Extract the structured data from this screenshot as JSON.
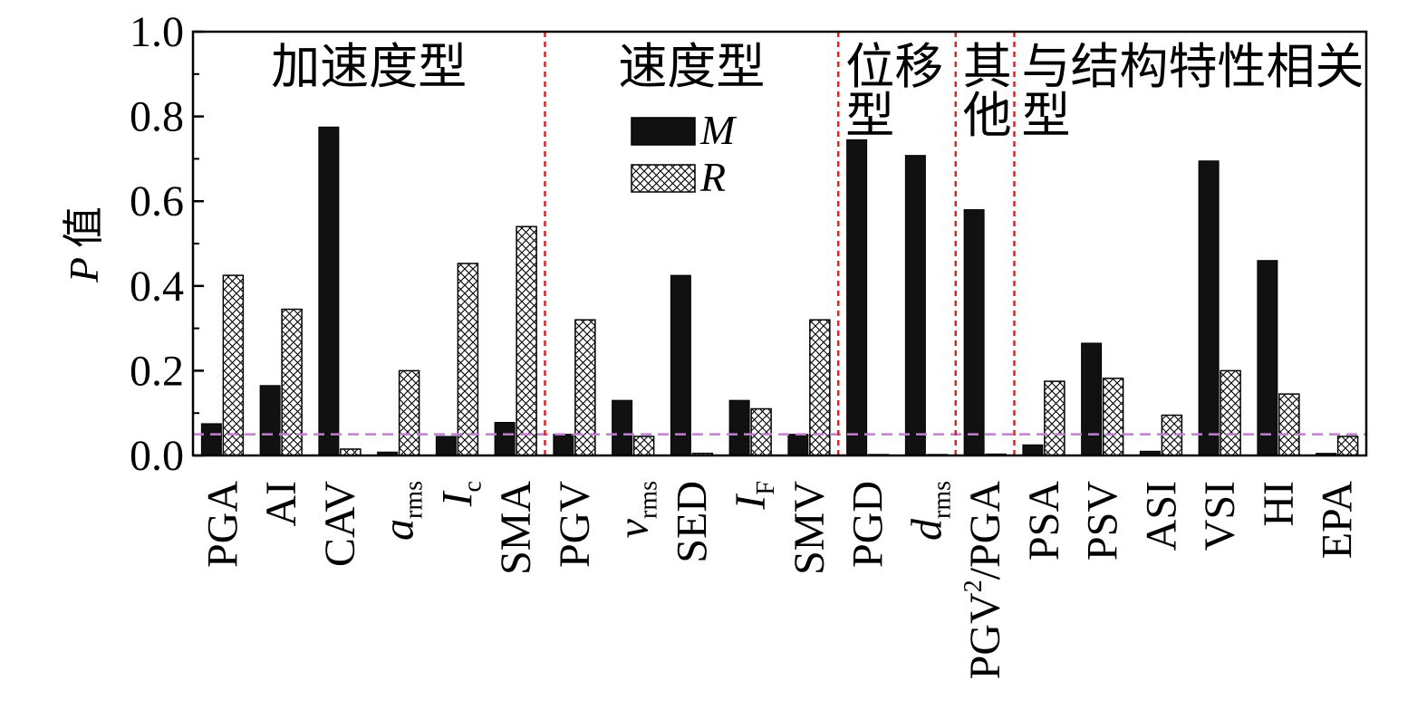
{
  "chart_data": {
    "type": "bar",
    "ylabel_symbol": "P",
    "ylabel_suffix": "值",
    "ylim": [
      0,
      1.0
    ],
    "yticks": [
      "0.0",
      "0.2",
      "0.4",
      "0.6",
      "0.8",
      "1.0"
    ],
    "grid": false,
    "legend_position": "top-center",
    "categories": [
      {
        "base": "PGA"
      },
      {
        "base": "AI"
      },
      {
        "base": "CAV"
      },
      {
        "base": "a",
        "sub": "rms"
      },
      {
        "base": "I",
        "sub": "c"
      },
      {
        "base": "SMA"
      },
      {
        "base": "PGV"
      },
      {
        "base": "v",
        "sub": "rms"
      },
      {
        "base": "SED"
      },
      {
        "base": "I",
        "sub": "F"
      },
      {
        "base": "SMV"
      },
      {
        "base": "PGD"
      },
      {
        "base": "d",
        "sub": "rms"
      },
      {
        "base": "PGV",
        "sup": "2",
        "rest": "/PGA"
      },
      {
        "base": "PSA"
      },
      {
        "base": "PSV"
      },
      {
        "base": "ASI"
      },
      {
        "base": "VSI"
      },
      {
        "base": "HI"
      },
      {
        "base": "EPA"
      }
    ],
    "series": [
      {
        "name": "M",
        "values": [
          0.075,
          0.165,
          0.775,
          0.008,
          0.045,
          0.078,
          0.05,
          0.13,
          0.425,
          0.13,
          0.05,
          0.745,
          0.708,
          0.58,
          0.025,
          0.265,
          0.01,
          0.695,
          0.46,
          0.005
        ]
      },
      {
        "name": "R",
        "values": [
          0.425,
          0.345,
          0.015,
          0.2,
          0.453,
          0.54,
          0.32,
          0.045,
          0.005,
          0.11,
          0.32,
          0.002,
          0.002,
          0.003,
          0.175,
          0.182,
          0.095,
          0.2,
          0.145,
          0.045
        ]
      }
    ],
    "threshold": 0.05,
    "groups": [
      {
        "label": "加速度型",
        "start": 0,
        "end": 5
      },
      {
        "label": "速度型",
        "start": 6,
        "end": 10
      },
      {
        "label": "位移型",
        "start": 11,
        "end": 12
      },
      {
        "label": "其他",
        "start": 13,
        "end": 13
      },
      {
        "label": "与结构特性相关型",
        "start": 14,
        "end": 19
      }
    ],
    "colors": {
      "M": "#111111",
      "R_hatch": "#000000",
      "divider": "#d62728",
      "threshold": "#c07fd0",
      "axis": "#000000"
    }
  }
}
